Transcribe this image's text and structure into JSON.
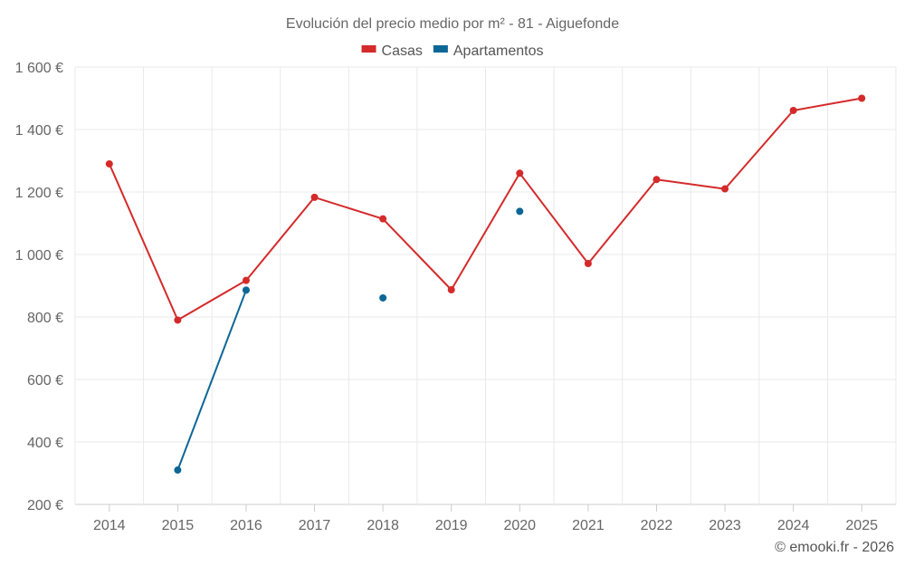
{
  "chart_data": {
    "type": "line",
    "title": "Evolución del precio medio por m² - 81 - Aiguefonde",
    "xlabel": "",
    "ylabel": "",
    "categories": [
      "2014",
      "2015",
      "2016",
      "2017",
      "2018",
      "2019",
      "2020",
      "2021",
      "2022",
      "2023",
      "2024",
      "2025"
    ],
    "ylim": [
      200,
      1600
    ],
    "yticks": [
      {
        "value": 200,
        "label": "200 €"
      },
      {
        "value": 400,
        "label": "400 €"
      },
      {
        "value": 600,
        "label": "600 €"
      },
      {
        "value": 800,
        "label": "800 €"
      },
      {
        "value": 1000,
        "label": "1 000 €"
      },
      {
        "value": 1200,
        "label": "1 200 €"
      },
      {
        "value": 1400,
        "label": "1 400 €"
      },
      {
        "value": 1600,
        "label": "1 600 €"
      }
    ],
    "grid": true,
    "legend_position": "top-center",
    "series": [
      {
        "name": "Casas",
        "color": "#d42a2a",
        "values": [
          1290,
          790,
          917,
          1183,
          1114,
          887,
          1260,
          971,
          1240,
          1210,
          1461,
          1500
        ]
      },
      {
        "name": "Apartamentos",
        "color": "#0c6696",
        "values": [
          null,
          310,
          886,
          null,
          861,
          null,
          1138,
          null,
          null,
          null,
          null,
          null
        ]
      }
    ]
  },
  "credit": "© emooki.fr - 2026"
}
